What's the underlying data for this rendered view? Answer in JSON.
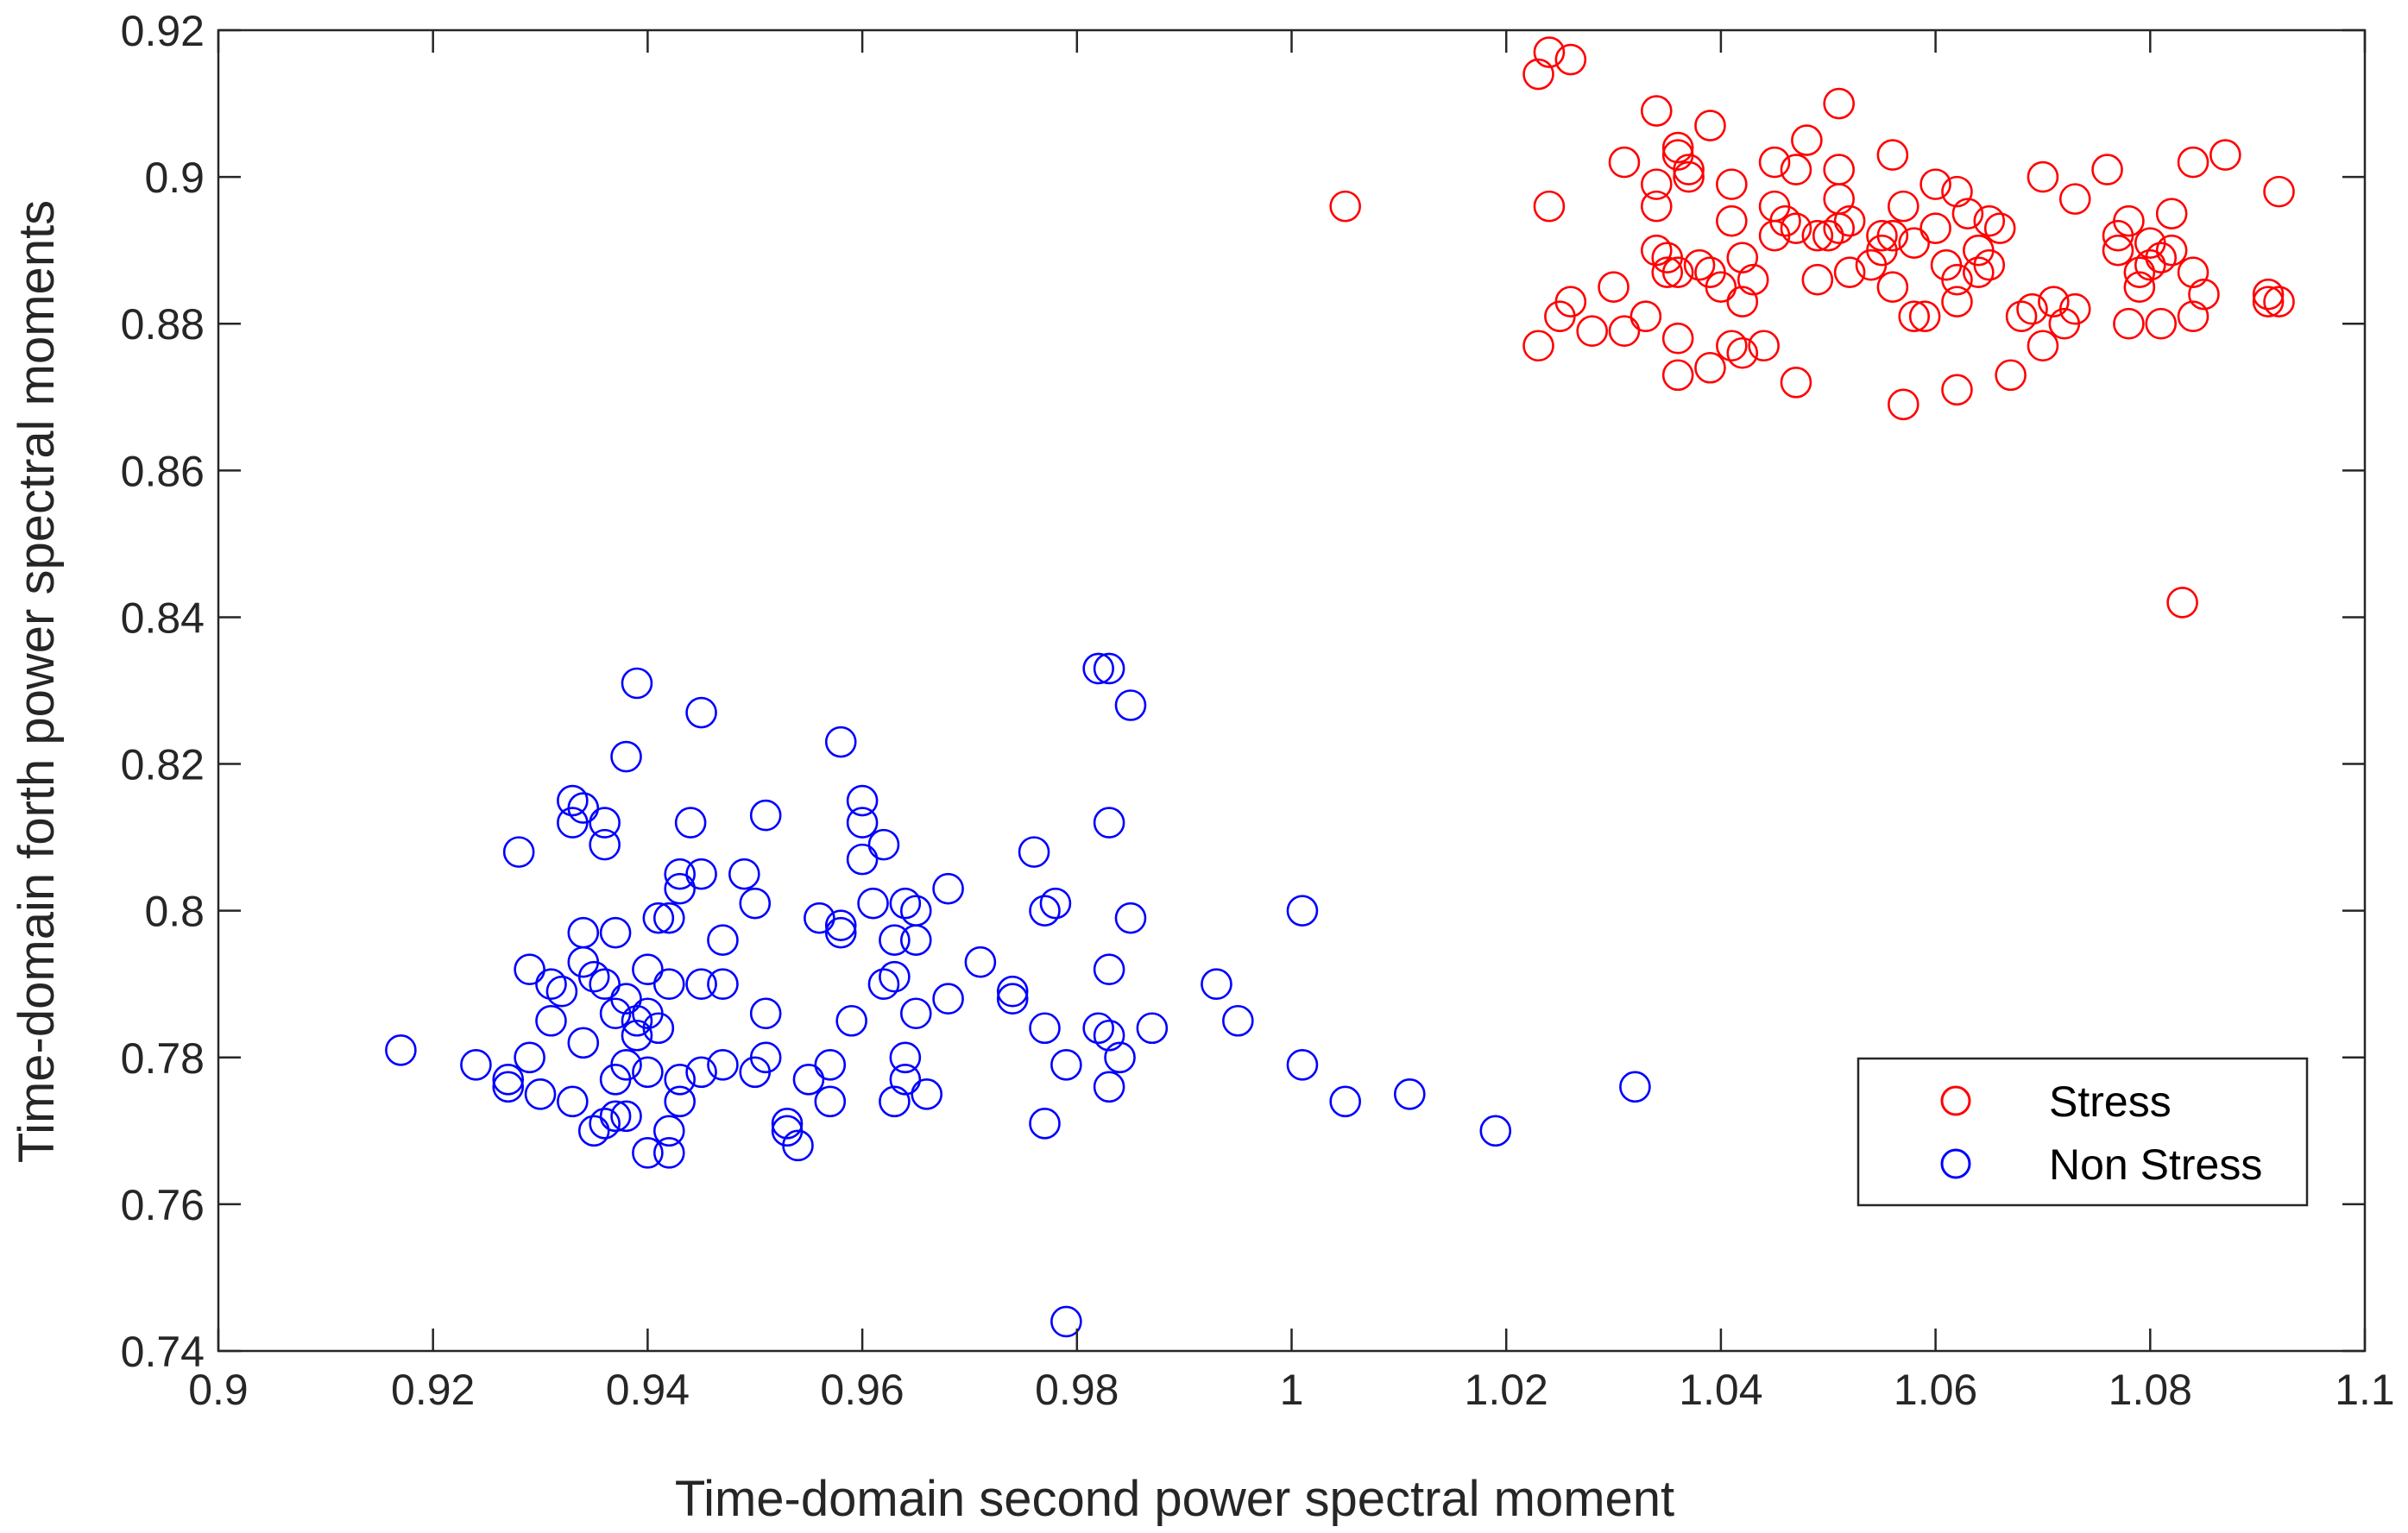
{
  "chart_data": {
    "type": "scatter",
    "title": "",
    "xlabel": "Time-domain second power spectral moment",
    "ylabel": "Time-domain forth power spectral moments",
    "xlim": [
      0.9,
      1.1
    ],
    "ylim": [
      0.74,
      0.92
    ],
    "xticks": [
      "0.9",
      "0.92",
      "0.94",
      "0.96",
      "0.98",
      "1",
      "1.02",
      "1.04",
      "1.06",
      "1.08",
      "1.1"
    ],
    "yticks": [
      "0.74",
      "0.76",
      "0.78",
      "0.8",
      "0.82",
      "0.84",
      "0.86",
      "0.88",
      "0.9",
      "0.92"
    ],
    "grid": false,
    "legend_position": "bottom-right",
    "series": [
      {
        "name": "Stress",
        "color": "#ff0000",
        "marker": "circle-open",
        "points": [
          [
            1.005,
            0.896
          ],
          [
            1.023,
            0.914
          ],
          [
            1.024,
            0.917
          ],
          [
            1.026,
            0.916
          ],
          [
            1.024,
            0.896
          ],
          [
            1.023,
            0.877
          ],
          [
            1.025,
            0.881
          ],
          [
            1.026,
            0.883
          ],
          [
            1.028,
            0.879
          ],
          [
            1.03,
            0.885
          ],
          [
            1.031,
            0.902
          ],
          [
            1.031,
            0.879
          ],
          [
            1.033,
            0.881
          ],
          [
            1.034,
            0.909
          ],
          [
            1.034,
            0.899
          ],
          [
            1.034,
            0.896
          ],
          [
            1.034,
            0.89
          ],
          [
            1.035,
            0.887
          ],
          [
            1.035,
            0.889
          ],
          [
            1.036,
            0.904
          ],
          [
            1.036,
            0.903
          ],
          [
            1.036,
            0.887
          ],
          [
            1.036,
            0.878
          ],
          [
            1.036,
            0.873
          ],
          [
            1.037,
            0.9
          ],
          [
            1.037,
            0.901
          ],
          [
            1.038,
            0.888
          ],
          [
            1.039,
            0.907
          ],
          [
            1.039,
            0.887
          ],
          [
            1.039,
            0.874
          ],
          [
            1.04,
            0.885
          ],
          [
            1.041,
            0.899
          ],
          [
            1.041,
            0.894
          ],
          [
            1.041,
            0.877
          ],
          [
            1.042,
            0.889
          ],
          [
            1.042,
            0.883
          ],
          [
            1.042,
            0.876
          ],
          [
            1.043,
            0.886
          ],
          [
            1.044,
            0.877
          ],
          [
            1.045,
            0.902
          ],
          [
            1.045,
            0.896
          ],
          [
            1.045,
            0.892
          ],
          [
            1.046,
            0.894
          ],
          [
            1.047,
            0.901
          ],
          [
            1.047,
            0.893
          ],
          [
            1.047,
            0.872
          ],
          [
            1.048,
            0.905
          ],
          [
            1.049,
            0.892
          ],
          [
            1.049,
            0.886
          ],
          [
            1.05,
            0.892
          ],
          [
            1.051,
            0.91
          ],
          [
            1.051,
            0.901
          ],
          [
            1.051,
            0.897
          ],
          [
            1.051,
            0.893
          ],
          [
            1.052,
            0.894
          ],
          [
            1.052,
            0.887
          ],
          [
            1.054,
            0.888
          ],
          [
            1.055,
            0.892
          ],
          [
            1.055,
            0.89
          ],
          [
            1.056,
            0.903
          ],
          [
            1.056,
            0.892
          ],
          [
            1.056,
            0.885
          ],
          [
            1.057,
            0.896
          ],
          [
            1.057,
            0.869
          ],
          [
            1.058,
            0.881
          ],
          [
            1.058,
            0.891
          ],
          [
            1.059,
            0.881
          ],
          [
            1.06,
            0.893
          ],
          [
            1.06,
            0.899
          ],
          [
            1.061,
            0.888
          ],
          [
            1.062,
            0.898
          ],
          [
            1.062,
            0.886
          ],
          [
            1.062,
            0.871
          ],
          [
            1.062,
            0.883
          ],
          [
            1.063,
            0.895
          ],
          [
            1.064,
            0.89
          ],
          [
            1.064,
            0.887
          ],
          [
            1.065,
            0.894
          ],
          [
            1.065,
            0.888
          ],
          [
            1.066,
            0.893
          ],
          [
            1.067,
            0.873
          ],
          [
            1.068,
            0.881
          ],
          [
            1.069,
            0.882
          ],
          [
            1.07,
            0.9
          ],
          [
            1.07,
            0.877
          ],
          [
            1.071,
            0.883
          ],
          [
            1.072,
            0.88
          ],
          [
            1.073,
            0.897
          ],
          [
            1.073,
            0.882
          ],
          [
            1.076,
            0.901
          ],
          [
            1.077,
            0.892
          ],
          [
            1.077,
            0.89
          ],
          [
            1.078,
            0.894
          ],
          [
            1.078,
            0.88
          ],
          [
            1.079,
            0.887
          ],
          [
            1.079,
            0.885
          ],
          [
            1.08,
            0.891
          ],
          [
            1.08,
            0.888
          ],
          [
            1.081,
            0.88
          ],
          [
            1.081,
            0.889
          ],
          [
            1.082,
            0.895
          ],
          [
            1.082,
            0.89
          ],
          [
            1.083,
            0.842
          ],
          [
            1.084,
            0.902
          ],
          [
            1.084,
            0.887
          ],
          [
            1.084,
            0.881
          ],
          [
            1.085,
            0.884
          ],
          [
            1.087,
            0.903
          ],
          [
            1.091,
            0.884
          ],
          [
            1.091,
            0.883
          ],
          [
            1.092,
            0.898
          ],
          [
            1.092,
            0.883
          ]
        ]
      },
      {
        "name": "Non Stress",
        "color": "#0000ff",
        "marker": "circle-open",
        "points": [
          [
            0.917,
            0.781
          ],
          [
            0.924,
            0.779
          ],
          [
            0.927,
            0.777
          ],
          [
            0.927,
            0.776
          ],
          [
            0.928,
            0.808
          ],
          [
            0.929,
            0.78
          ],
          [
            0.929,
            0.792
          ],
          [
            0.93,
            0.775
          ],
          [
            0.931,
            0.785
          ],
          [
            0.931,
            0.79
          ],
          [
            0.932,
            0.789
          ],
          [
            0.933,
            0.815
          ],
          [
            0.933,
            0.812
          ],
          [
            0.933,
            0.774
          ],
          [
            0.934,
            0.814
          ],
          [
            0.934,
            0.797
          ],
          [
            0.934,
            0.793
          ],
          [
            0.934,
            0.782
          ],
          [
            0.935,
            0.77
          ],
          [
            0.935,
            0.791
          ],
          [
            0.936,
            0.812
          ],
          [
            0.936,
            0.809
          ],
          [
            0.936,
            0.771
          ],
          [
            0.936,
            0.79
          ],
          [
            0.937,
            0.786
          ],
          [
            0.937,
            0.777
          ],
          [
            0.937,
            0.772
          ],
          [
            0.937,
            0.797
          ],
          [
            0.938,
            0.821
          ],
          [
            0.938,
            0.779
          ],
          [
            0.938,
            0.772
          ],
          [
            0.938,
            0.788
          ],
          [
            0.939,
            0.831
          ],
          [
            0.939,
            0.783
          ],
          [
            0.939,
            0.785
          ],
          [
            0.94,
            0.786
          ],
          [
            0.94,
            0.778
          ],
          [
            0.94,
            0.767
          ],
          [
            0.94,
            0.792
          ],
          [
            0.941,
            0.799
          ],
          [
            0.941,
            0.784
          ],
          [
            0.942,
            0.79
          ],
          [
            0.942,
            0.767
          ],
          [
            0.942,
            0.799
          ],
          [
            0.942,
            0.77
          ],
          [
            0.943,
            0.805
          ],
          [
            0.943,
            0.803
          ],
          [
            0.943,
            0.777
          ],
          [
            0.943,
            0.774
          ],
          [
            0.944,
            0.812
          ],
          [
            0.945,
            0.827
          ],
          [
            0.945,
            0.805
          ],
          [
            0.945,
            0.79
          ],
          [
            0.945,
            0.778
          ],
          [
            0.947,
            0.796
          ],
          [
            0.947,
            0.79
          ],
          [
            0.947,
            0.779
          ],
          [
            0.949,
            0.805
          ],
          [
            0.95,
            0.801
          ],
          [
            0.95,
            0.778
          ],
          [
            0.951,
            0.813
          ],
          [
            0.951,
            0.78
          ],
          [
            0.951,
            0.786
          ],
          [
            0.953,
            0.771
          ],
          [
            0.953,
            0.77
          ],
          [
            0.954,
            0.768
          ],
          [
            0.955,
            0.777
          ],
          [
            0.956,
            0.799
          ],
          [
            0.957,
            0.779
          ],
          [
            0.957,
            0.774
          ],
          [
            0.958,
            0.798
          ],
          [
            0.958,
            0.797
          ],
          [
            0.958,
            0.823
          ],
          [
            0.959,
            0.785
          ],
          [
            0.96,
            0.815
          ],
          [
            0.96,
            0.812
          ],
          [
            0.96,
            0.807
          ],
          [
            0.961,
            0.801
          ],
          [
            0.962,
            0.79
          ],
          [
            0.962,
            0.809
          ],
          [
            0.963,
            0.796
          ],
          [
            0.963,
            0.791
          ],
          [
            0.963,
            0.774
          ],
          [
            0.964,
            0.801
          ],
          [
            0.964,
            0.78
          ],
          [
            0.964,
            0.777
          ],
          [
            0.965,
            0.796
          ],
          [
            0.965,
            0.8
          ],
          [
            0.965,
            0.786
          ],
          [
            0.966,
            0.775
          ],
          [
            0.968,
            0.803
          ],
          [
            0.968,
            0.788
          ],
          [
            0.971,
            0.793
          ],
          [
            0.974,
            0.789
          ],
          [
            0.974,
            0.788
          ],
          [
            0.976,
            0.808
          ],
          [
            0.977,
            0.784
          ],
          [
            0.977,
            0.771
          ],
          [
            0.977,
            0.8
          ],
          [
            0.978,
            0.801
          ],
          [
            0.979,
            0.744
          ],
          [
            0.979,
            0.779
          ],
          [
            0.982,
            0.833
          ],
          [
            0.982,
            0.784
          ],
          [
            0.983,
            0.833
          ],
          [
            0.983,
            0.812
          ],
          [
            0.983,
            0.792
          ],
          [
            0.983,
            0.776
          ],
          [
            0.983,
            0.783
          ],
          [
            0.984,
            0.78
          ],
          [
            0.985,
            0.828
          ],
          [
            0.985,
            0.799
          ],
          [
            0.987,
            0.784
          ],
          [
            0.993,
            0.79
          ],
          [
            0.995,
            0.785
          ],
          [
            1.001,
            0.8
          ],
          [
            1.001,
            0.779
          ],
          [
            1.005,
            0.774
          ],
          [
            1.011,
            0.775
          ],
          [
            1.019,
            0.77
          ],
          [
            1.032,
            0.776
          ]
        ]
      }
    ]
  }
}
